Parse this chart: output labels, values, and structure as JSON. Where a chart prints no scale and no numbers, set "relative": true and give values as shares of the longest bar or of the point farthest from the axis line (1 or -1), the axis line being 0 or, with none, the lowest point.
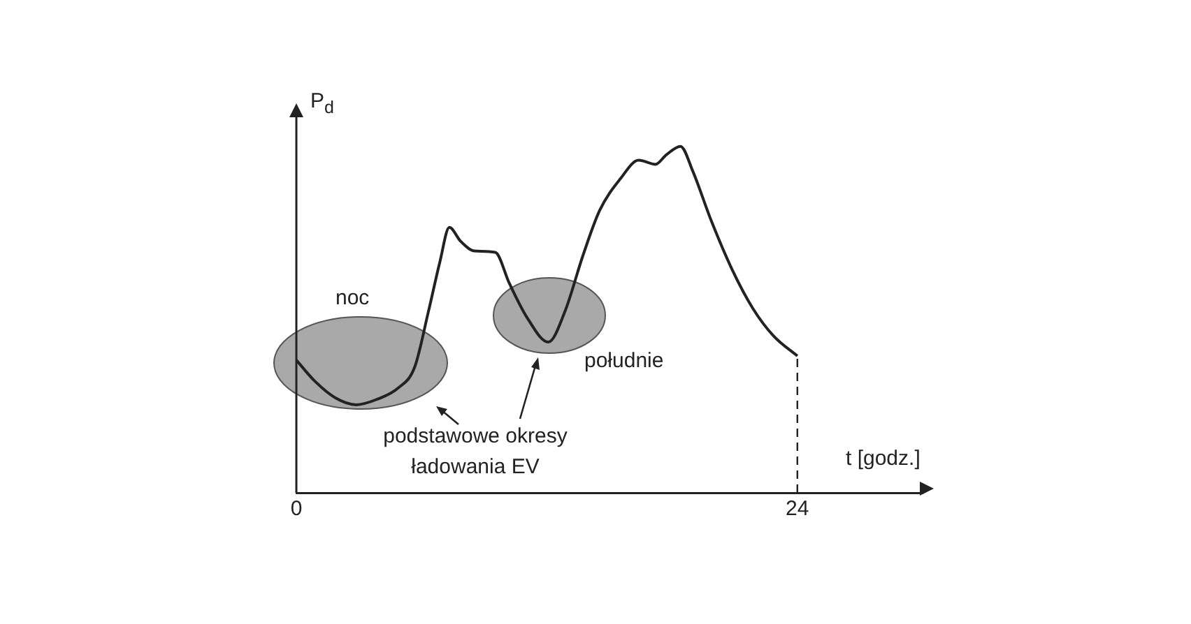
{
  "chart_data": {
    "type": "line",
    "relative": true,
    "xlabel": "t [godz.]",
    "ylabel": "P$_{d}$",
    "xlim": [
      0,
      30
    ],
    "xticks": [
      0,
      24
    ],
    "grid": false,
    "legend": false,
    "marker": "none",
    "line_style": "solid",
    "x": [
      0,
      0.87,
      1.87,
      2.87,
      3.87,
      4.87,
      5.67,
      6.33,
      6.87,
      7.33,
      7.87,
      8.53,
      9.53,
      10.2,
      11.07,
      12.07,
      12.87,
      13.73,
      14.53,
      15.53,
      16.4,
      17.2,
      17.73,
      18.4,
      19,
      19.87,
      20.87,
      21.87,
      22.87,
      24
    ],
    "series": [
      {
        "color": "#222222",
        "values": [
          0.383,
          0.323,
          0.274,
          0.254,
          0.27,
          0.302,
          0.363,
          0.524,
          0.665,
          0.766,
          0.726,
          0.698,
          0.694,
          0.605,
          0.504,
          0.435,
          0.524,
          0.685,
          0.815,
          0.907,
          0.96,
          0.948,
          0.976,
          1,
          0.927,
          0.786,
          0.645,
          0.532,
          0.452,
          0.395
        ]
      }
    ],
    "ref_lines": [
      {
        "axis": "x",
        "value": 24,
        "line_style": "dashed",
        "color": "#222222"
      }
    ],
    "annotations": [
      "noc",
      "południe",
      "podstawowe okresy ładowania EV"
    ]
  }
}
